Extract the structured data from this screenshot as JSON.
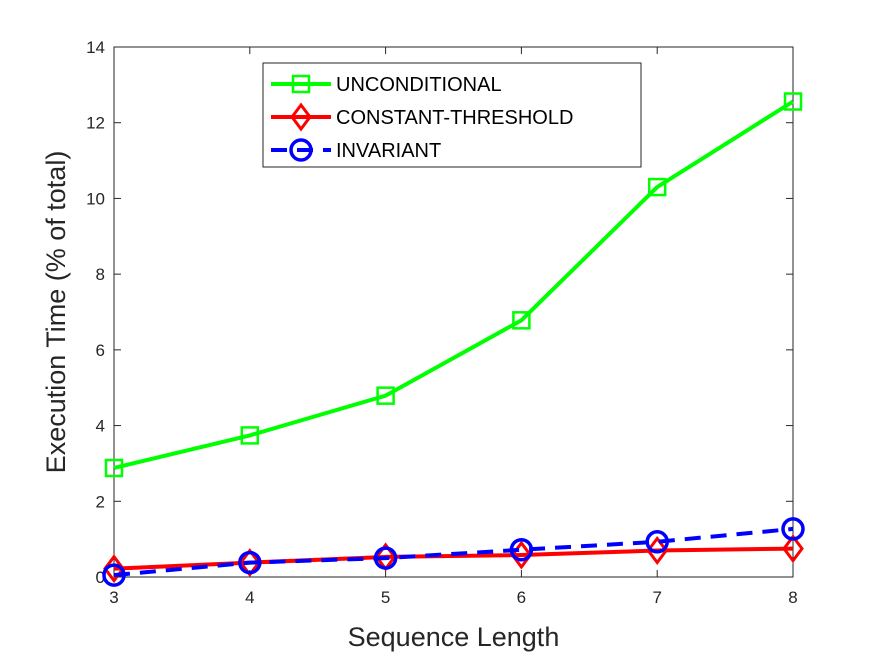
{
  "chart_data": {
    "type": "line",
    "title": "",
    "xlabel": "Sequence Length",
    "ylabel": "Execution Time (% of total)",
    "x": [
      3,
      4,
      5,
      6,
      7,
      8
    ],
    "xlim": [
      3,
      8
    ],
    "ylim": [
      0,
      14
    ],
    "xticks": [
      "3",
      "4",
      "5",
      "6",
      "7",
      "8"
    ],
    "yticks": [
      "0",
      "2",
      "4",
      "6",
      "8",
      "10",
      "12",
      "14"
    ],
    "grid": false,
    "legend_position": "top-center",
    "series": [
      {
        "name": "UNCONDITIONAL",
        "values": [
          2.88,
          3.74,
          4.79,
          6.78,
          10.3,
          12.56
        ],
        "color": "#00ff00",
        "marker": "square",
        "dash": "solid"
      },
      {
        "name": "CONSTANT-THRESHOLD",
        "values": [
          0.22,
          0.38,
          0.53,
          0.58,
          0.7,
          0.75
        ],
        "color": "#ff0000",
        "marker": "diamond",
        "dash": "solid"
      },
      {
        "name": "INVARIANT",
        "values": [
          0.05,
          0.38,
          0.5,
          0.72,
          0.93,
          1.27
        ],
        "color": "#0000ff",
        "marker": "circle",
        "dash": "dashed"
      }
    ]
  }
}
